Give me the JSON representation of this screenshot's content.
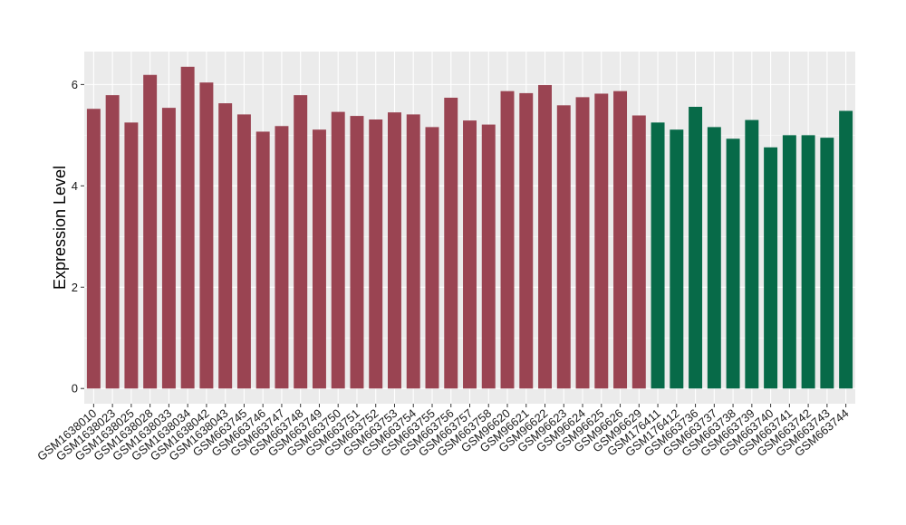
{
  "chart_data": {
    "type": "bar",
    "title": "",
    "xlabel": "",
    "ylabel": "Expression Level",
    "ylim": [
      -0.3,
      6.65
    ],
    "yticks": [
      0,
      2,
      4,
      6
    ],
    "grid": true,
    "legend": "none",
    "colors": {
      "group_a": "#9a4452",
      "group_b": "#076a48",
      "panel": "#ebebeb",
      "grid": "#ffffff"
    },
    "categories": [
      "GSM1638010",
      "GSM1638023",
      "GSM1638025",
      "GSM1638028",
      "GSM1638033",
      "GSM1638034",
      "GSM1638042",
      "GSM1638043",
      "GSM663745",
      "GSM663746",
      "GSM663747",
      "GSM663748",
      "GSM663749",
      "GSM663750",
      "GSM663751",
      "GSM663752",
      "GSM663753",
      "GSM663754",
      "GSM663755",
      "GSM663756",
      "GSM663757",
      "GSM663758",
      "GSM96620",
      "GSM96621",
      "GSM96622",
      "GSM96623",
      "GSM96624",
      "GSM96625",
      "GSM96626",
      "GSM96629",
      "GSM176411",
      "GSM176412",
      "GSM663736",
      "GSM663737",
      "GSM663738",
      "GSM663739",
      "GSM663740",
      "GSM663741",
      "GSM663742",
      "GSM663743",
      "GSM663744"
    ],
    "values": [
      5.52,
      5.79,
      5.25,
      6.19,
      5.54,
      6.35,
      6.04,
      5.63,
      5.41,
      5.07,
      5.18,
      5.79,
      5.11,
      5.46,
      5.38,
      5.31,
      5.45,
      5.41,
      5.16,
      5.74,
      5.29,
      5.21,
      5.87,
      5.83,
      5.99,
      5.59,
      5.75,
      5.82,
      5.87,
      5.39,
      5.25,
      5.11,
      5.56,
      5.16,
      4.93,
      5.3,
      4.76,
      5.0,
      5.0,
      4.95,
      5.48
    ],
    "groups": [
      "a",
      "a",
      "a",
      "a",
      "a",
      "a",
      "a",
      "a",
      "a",
      "a",
      "a",
      "a",
      "a",
      "a",
      "a",
      "a",
      "a",
      "a",
      "a",
      "a",
      "a",
      "a",
      "a",
      "a",
      "a",
      "a",
      "a",
      "a",
      "a",
      "a",
      "b",
      "b",
      "b",
      "b",
      "b",
      "b",
      "b",
      "b",
      "b",
      "b",
      "b"
    ]
  }
}
